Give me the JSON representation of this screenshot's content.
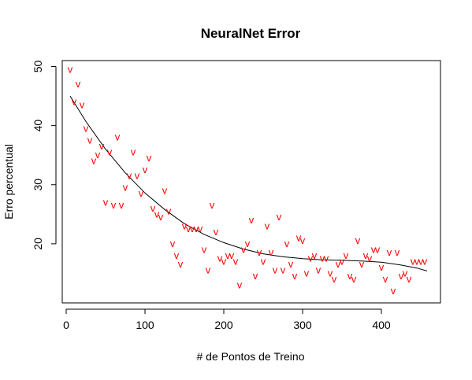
{
  "chart_data": {
    "type": "scatter",
    "title": "NeuralNet Error",
    "xlabel": "# de Pontos de Treino",
    "ylabel": "Erro percentual",
    "xlim": [
      -5,
      475
    ],
    "ylim": [
      10,
      51
    ],
    "xticks": [
      0,
      100,
      200,
      300,
      400
    ],
    "yticks": [
      20,
      30,
      40,
      50
    ],
    "grid": false,
    "marker": "v",
    "point_color": "#ff0000",
    "line_color": "#000000",
    "points": [
      [
        5,
        49.5
      ],
      [
        10,
        44
      ],
      [
        15,
        47
      ],
      [
        20,
        43.5
      ],
      [
        25,
        39.5
      ],
      [
        30,
        37.5
      ],
      [
        35,
        34
      ],
      [
        40,
        35
      ],
      [
        45,
        36.5
      ],
      [
        50,
        27
      ],
      [
        55,
        35.5
      ],
      [
        60,
        26.5
      ],
      [
        65,
        38
      ],
      [
        70,
        26.5
      ],
      [
        75,
        29.5
      ],
      [
        80,
        31.5
      ],
      [
        85,
        35.5
      ],
      [
        90,
        31.5
      ],
      [
        95,
        28.5
      ],
      [
        100,
        32.5
      ],
      [
        105,
        34.5
      ],
      [
        110,
        26
      ],
      [
        115,
        25
      ],
      [
        120,
        24.5
      ],
      [
        125,
        29
      ],
      [
        130,
        25.5
      ],
      [
        135,
        20
      ],
      [
        140,
        18
      ],
      [
        145,
        16.5
      ],
      [
        150,
        23
      ],
      [
        155,
        22.5
      ],
      [
        160,
        22.5
      ],
      [
        165,
        22.5
      ],
      [
        170,
        22.5
      ],
      [
        175,
        19
      ],
      [
        180,
        15.5
      ],
      [
        185,
        26.5
      ],
      [
        190,
        22
      ],
      [
        195,
        17.5
      ],
      [
        200,
        17
      ],
      [
        205,
        18
      ],
      [
        210,
        18
      ],
      [
        215,
        17
      ],
      [
        220,
        13
      ],
      [
        225,
        19
      ],
      [
        230,
        20
      ],
      [
        235,
        24
      ],
      [
        240,
        14.5
      ],
      [
        245,
        18.5
      ],
      [
        250,
        17
      ],
      [
        255,
        23
      ],
      [
        260,
        18.5
      ],
      [
        265,
        15.5
      ],
      [
        270,
        24.5
      ],
      [
        275,
        15.5
      ],
      [
        280,
        20
      ],
      [
        285,
        16.5
      ],
      [
        290,
        14.5
      ],
      [
        295,
        21
      ],
      [
        300,
        20.5
      ],
      [
        305,
        15
      ],
      [
        310,
        17.5
      ],
      [
        315,
        18
      ],
      [
        320,
        15.5
      ],
      [
        325,
        17.5
      ],
      [
        330,
        17.5
      ],
      [
        335,
        15
      ],
      [
        340,
        14
      ],
      [
        345,
        16.5
      ],
      [
        350,
        17
      ],
      [
        355,
        18
      ],
      [
        360,
        14.5
      ],
      [
        365,
        14
      ],
      [
        370,
        20.5
      ],
      [
        375,
        16.5
      ],
      [
        380,
        18
      ],
      [
        385,
        17.5
      ],
      [
        390,
        19
      ],
      [
        395,
        19
      ],
      [
        400,
        16
      ],
      [
        405,
        14
      ],
      [
        410,
        18.5
      ],
      [
        415,
        12
      ],
      [
        420,
        18.5
      ],
      [
        425,
        14.5
      ],
      [
        430,
        15
      ],
      [
        435,
        14
      ],
      [
        440,
        17
      ],
      [
        445,
        17
      ],
      [
        450,
        17
      ],
      [
        455,
        17
      ]
    ],
    "fit_line": [
      [
        5,
        45
      ],
      [
        25,
        40.7
      ],
      [
        50,
        36
      ],
      [
        75,
        32
      ],
      [
        100,
        28.6
      ],
      [
        125,
        25.8
      ],
      [
        150,
        23.4
      ],
      [
        175,
        21.6
      ],
      [
        200,
        20.2
      ],
      [
        225,
        19.1
      ],
      [
        250,
        18.3
      ],
      [
        275,
        17.8
      ],
      [
        300,
        17.5
      ],
      [
        325,
        17.3
      ],
      [
        350,
        17.2
      ],
      [
        375,
        17.1
      ],
      [
        400,
        16.9
      ],
      [
        425,
        16.4
      ],
      [
        445,
        15.9
      ],
      [
        458,
        15.4
      ]
    ]
  }
}
